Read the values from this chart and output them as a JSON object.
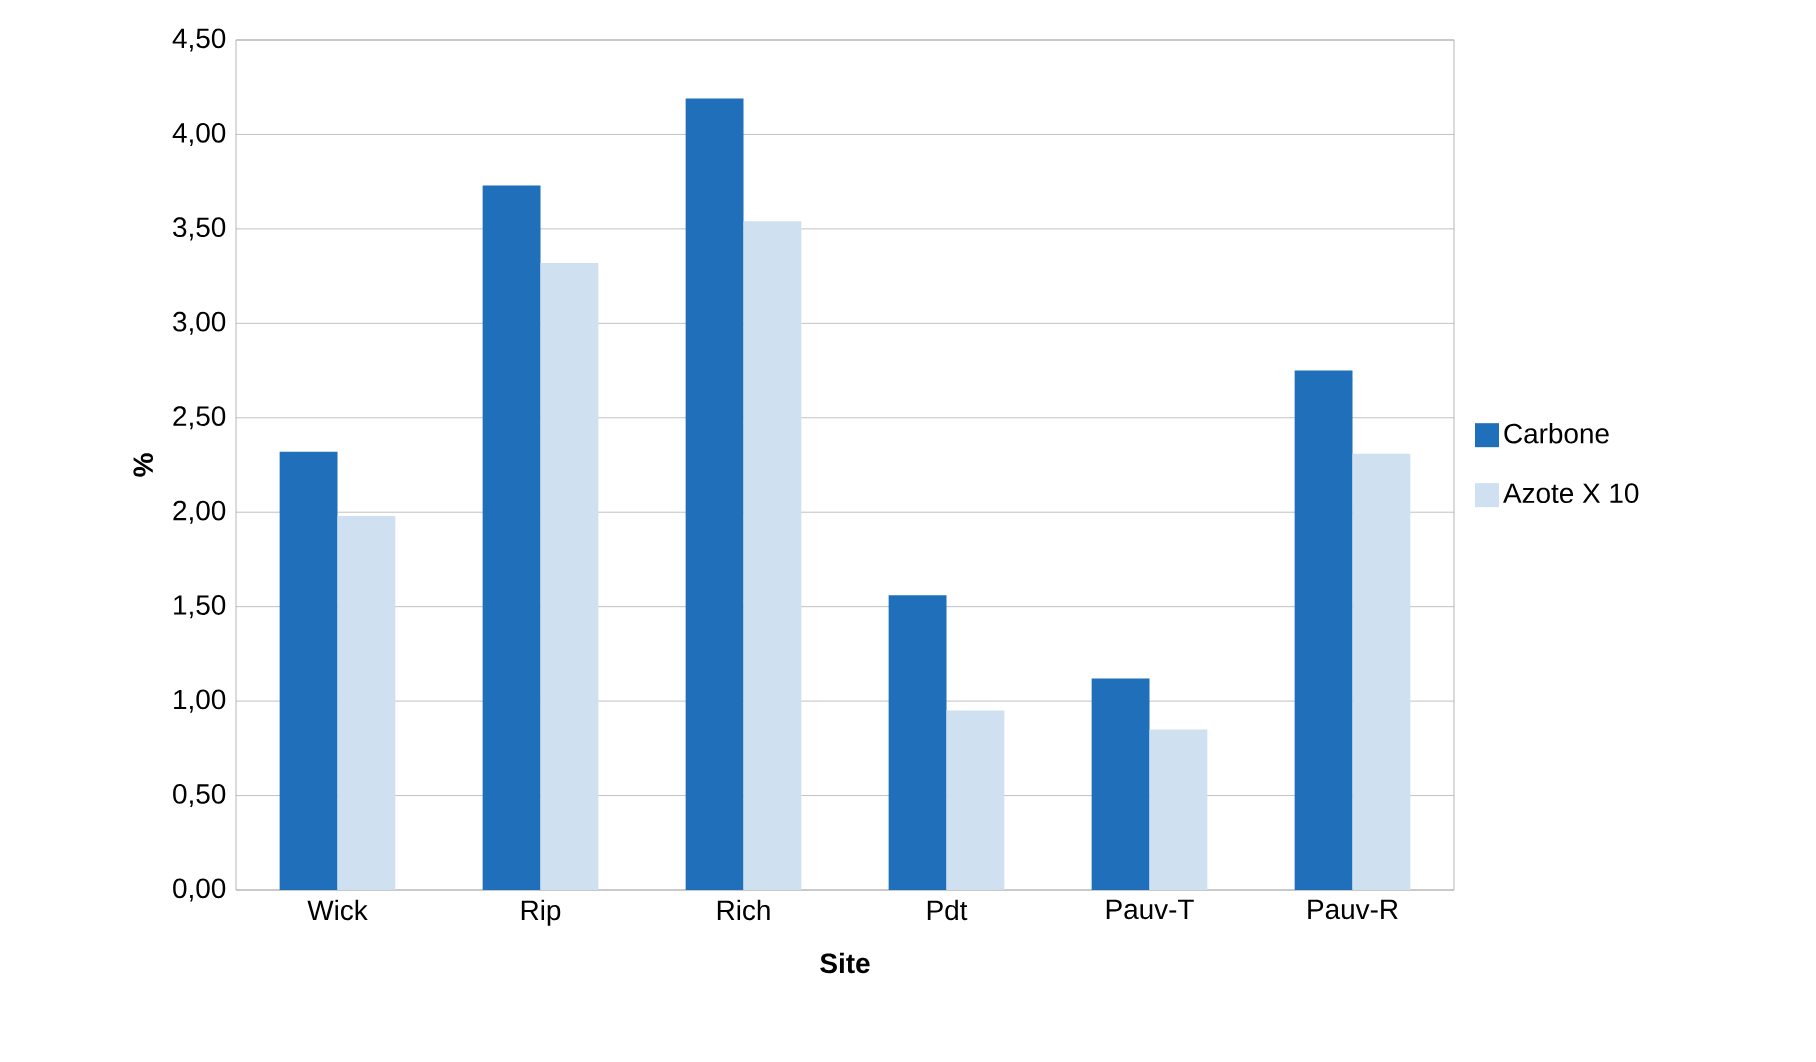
{
  "chart_data": {
    "type": "bar",
    "xlabel": "Site",
    "ylabel": "%",
    "categories": [
      "Wick",
      "Rip",
      "Rich",
      "Pdt",
      "Pauv-T",
      "Pauv-R"
    ],
    "series": [
      {
        "name": "Carbone",
        "color": "#1f6fba",
        "values": [
          2.32,
          3.73,
          4.19,
          1.56,
          1.12,
          2.75
        ]
      },
      {
        "name": "Azote X 10",
        "color": "#cfe0f1",
        "values": [
          1.98,
          3.32,
          3.54,
          0.95,
          0.85,
          2.31
        ]
      }
    ],
    "ylim": [
      0,
      4.5
    ],
    "yticks": [
      {
        "value": 0,
        "label": "0,00"
      },
      {
        "value": 0.5,
        "label": "0,50"
      },
      {
        "value": 1,
        "label": "1,00"
      },
      {
        "value": 1.5,
        "label": "1,50"
      },
      {
        "value": 2,
        "label": "2,00"
      },
      {
        "value": 2.5,
        "label": "2,50"
      },
      {
        "value": 3,
        "label": "3,00"
      },
      {
        "value": 3.5,
        "label": "3,50"
      },
      {
        "value": 4,
        "label": "4,00"
      },
      {
        "value": 4.5,
        "label": "4,50"
      }
    ],
    "grid": "y",
    "legend": "right"
  }
}
